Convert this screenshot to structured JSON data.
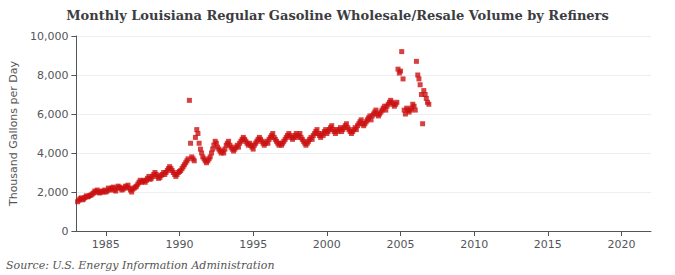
{
  "chart_data": {
    "type": "scatter",
    "title": "Monthly Louisiana Regular Gasoline Wholesale/Resale Volume by Refiners",
    "ylabel": "Thousand Gallons per Day",
    "annotation": "Source: U.S. Energy Information Administration",
    "color": "#cc1111",
    "marker": "square",
    "grid": true,
    "xlim": [
      1983,
      2022
    ],
    "ylim": [
      0,
      10000
    ],
    "xticks": [
      1985,
      1990,
      1995,
      2000,
      2005,
      2010,
      2015,
      2020
    ],
    "yticks": [
      0,
      {
        "value": 2000,
        "label": "2,000"
      },
      {
        "value": 4000,
        "label": "4,000"
      },
      {
        "value": 6000,
        "label": "6,000"
      },
      {
        "value": 8000,
        "label": "8,000"
      },
      {
        "value": 10000,
        "label": "10,000"
      }
    ],
    "x": [
      1983.08,
      1983.17,
      1983.25,
      1983.33,
      1983.42,
      1983.5,
      1983.58,
      1983.67,
      1983.75,
      1983.83,
      1983.92,
      1984.0,
      1984.08,
      1984.17,
      1984.25,
      1984.33,
      1984.42,
      1984.5,
      1984.58,
      1984.67,
      1984.75,
      1984.83,
      1984.92,
      1985.0,
      1985.08,
      1985.17,
      1985.25,
      1985.33,
      1985.42,
      1985.5,
      1985.58,
      1985.67,
      1985.75,
      1985.83,
      1985.92,
      1986.0,
      1986.08,
      1986.17,
      1986.25,
      1986.33,
      1986.42,
      1986.5,
      1986.58,
      1986.67,
      1986.75,
      1986.83,
      1986.92,
      1987.0,
      1987.08,
      1987.17,
      1987.25,
      1987.33,
      1987.42,
      1987.5,
      1987.58,
      1987.67,
      1987.75,
      1987.83,
      1987.92,
      1988.0,
      1988.08,
      1988.17,
      1988.25,
      1988.33,
      1988.42,
      1988.5,
      1988.58,
      1988.67,
      1988.75,
      1988.83,
      1988.92,
      1989.0,
      1989.08,
      1989.17,
      1989.25,
      1989.33,
      1989.42,
      1989.5,
      1989.58,
      1989.67,
      1989.75,
      1989.83,
      1989.92,
      1990.0,
      1990.08,
      1990.17,
      1990.25,
      1990.33,
      1990.42,
      1990.5,
      1990.58,
      1990.67,
      1990.75,
      1990.83,
      1990.92,
      1991.0,
      1991.08,
      1991.17,
      1991.25,
      1991.33,
      1991.42,
      1991.5,
      1991.58,
      1991.67,
      1991.75,
      1991.83,
      1991.92,
      1992.0,
      1992.08,
      1992.17,
      1992.25,
      1992.33,
      1992.42,
      1992.5,
      1992.58,
      1992.67,
      1992.75,
      1992.83,
      1992.92,
      1993.0,
      1993.08,
      1993.17,
      1993.25,
      1993.33,
      1993.42,
      1993.5,
      1993.58,
      1993.67,
      1993.75,
      1993.83,
      1993.92,
      1994.0,
      1994.08,
      1994.17,
      1994.25,
      1994.33,
      1994.42,
      1994.5,
      1994.58,
      1994.67,
      1994.75,
      1994.83,
      1994.92,
      1995.0,
      1995.08,
      1995.17,
      1995.25,
      1995.33,
      1995.42,
      1995.5,
      1995.58,
      1995.67,
      1995.75,
      1995.83,
      1995.92,
      1996.0,
      1996.08,
      1996.17,
      1996.25,
      1996.33,
      1996.42,
      1996.5,
      1996.58,
      1996.67,
      1996.75,
      1996.83,
      1996.92,
      1997.0,
      1997.08,
      1997.17,
      1997.25,
      1997.33,
      1997.42,
      1997.5,
      1997.58,
      1997.67,
      1997.75,
      1997.83,
      1997.92,
      1998.0,
      1998.08,
      1998.17,
      1998.25,
      1998.33,
      1998.42,
      1998.5,
      1998.58,
      1998.67,
      1998.75,
      1998.83,
      1998.92,
      1999.0,
      1999.08,
      1999.17,
      1999.25,
      1999.33,
      1999.42,
      1999.5,
      1999.58,
      1999.67,
      1999.75,
      1999.83,
      1999.92,
      2000.0,
      2000.08,
      2000.17,
      2000.25,
      2000.33,
      2000.42,
      2000.5,
      2000.58,
      2000.67,
      2000.75,
      2000.83,
      2000.92,
      2001.0,
      2001.08,
      2001.17,
      2001.25,
      2001.33,
      2001.42,
      2001.5,
      2001.58,
      2001.67,
      2001.75,
      2001.83,
      2001.92,
      2002.0,
      2002.08,
      2002.17,
      2002.25,
      2002.33,
      2002.42,
      2002.5,
      2002.58,
      2002.67,
      2002.75,
      2002.83,
      2002.92,
      2003.0,
      2003.08,
      2003.17,
      2003.25,
      2003.33,
      2003.42,
      2003.5,
      2003.58,
      2003.67,
      2003.75,
      2003.83,
      2003.92,
      2004.0,
      2004.08,
      2004.17,
      2004.25,
      2004.33,
      2004.42,
      2004.5,
      2004.58,
      2004.67,
      2004.75,
      2004.83,
      2004.92,
      2005.0,
      2005.08,
      2005.17,
      2005.25,
      2005.33,
      2005.42,
      2005.5,
      2005.58,
      2005.67,
      2005.75,
      2005.83,
      2005.92,
      2006.0,
      2006.08,
      2006.17,
      2006.25,
      2006.33,
      2006.42,
      2006.5,
      2006.58,
      2006.67,
      2006.75,
      2006.83,
      2006.92
    ],
    "values": [
      1500,
      1580,
      1650,
      1700,
      1600,
      1650,
      1720,
      1800,
      1750,
      1780,
      1820,
      1850,
      1900,
      1950,
      2050,
      2000,
      2100,
      2000,
      1950,
      2000,
      2050,
      2000,
      2100,
      2000,
      2050,
      2200,
      2100,
      2150,
      2200,
      2250,
      2100,
      2050,
      2200,
      2300,
      2250,
      2200,
      2100,
      2150,
      2200,
      2300,
      2250,
      2350,
      2200,
      2100,
      2000,
      2150,
      2200,
      2250,
      2300,
      2400,
      2500,
      2600,
      2500,
      2550,
      2600,
      2500,
      2600,
      2700,
      2800,
      2650,
      2700,
      2800,
      2900,
      3000,
      2900,
      2800,
      2700,
      2750,
      2850,
      2900,
      3000,
      2900,
      3000,
      3100,
      3200,
      3300,
      3200,
      3100,
      3000,
      2900,
      2800,
      2900,
      3000,
      3050,
      3100,
      3200,
      3300,
      3400,
      3500,
      3600,
      3700,
      6700,
      4500,
      3800,
      3700,
      3600,
      4800,
      5200,
      5000,
      4500,
      4200,
      4000,
      3800,
      3700,
      3600,
      3500,
      3600,
      3700,
      3800,
      4000,
      4200,
      4400,
      4600,
      4500,
      4300,
      4200,
      4100,
      4000,
      4100,
      4000,
      4200,
      4400,
      4500,
      4600,
      4400,
      4300,
      4200,
      4100,
      4200,
      4300,
      4400,
      4300,
      4500,
      4600,
      4700,
      4800,
      4700,
      4600,
      4500,
      4400,
      4500,
      4400,
      4300,
      4200,
      4400,
      4500,
      4600,
      4700,
      4800,
      4700,
      4600,
      4500,
      4400,
      4500,
      4600,
      4500,
      4700,
      4800,
      4900,
      5000,
      4800,
      4700,
      4600,
      4500,
      4400,
      4500,
      4400,
      4500,
      4600,
      4700,
      4800,
      4900,
      5000,
      4900,
      4800,
      4700,
      4800,
      4900,
      5000,
      4800,
      4900,
      5000,
      4800,
      4700,
      4600,
      4500,
      4400,
      4500,
      4600,
      4700,
      4800,
      4700,
      4900,
      5000,
      5100,
      5200,
      5000,
      4900,
      4800,
      5000,
      4900,
      5100,
      5200,
      5000,
      5100,
      5200,
      5300,
      5400,
      5200,
      5100,
      5000,
      5200,
      5100,
      5200,
      5300,
      5100,
      5200,
      5300,
      5400,
      5500,
      5300,
      5200,
      5100,
      5000,
      5100,
      5200,
      5300,
      5200,
      5400,
      5500,
      5600,
      5700,
      5500,
      5400,
      5500,
      5600,
      5700,
      5800,
      5900,
      5700,
      5900,
      6000,
      6100,
      6200,
      6000,
      5900,
      6000,
      6100,
      6200,
      6300,
      6400,
      6200,
      6400,
      6500,
      6600,
      6700,
      6600,
      6500,
      6400,
      6500,
      6600,
      8300,
      8100,
      8200,
      9200,
      7800,
      6200,
      6000,
      6300,
      6200,
      6100,
      6200,
      6300,
      6500,
      6400,
      6200,
      8700,
      8000,
      7800,
      7500,
      7000,
      5500,
      7200,
      7000,
      6800,
      6600,
      6500
    ]
  }
}
